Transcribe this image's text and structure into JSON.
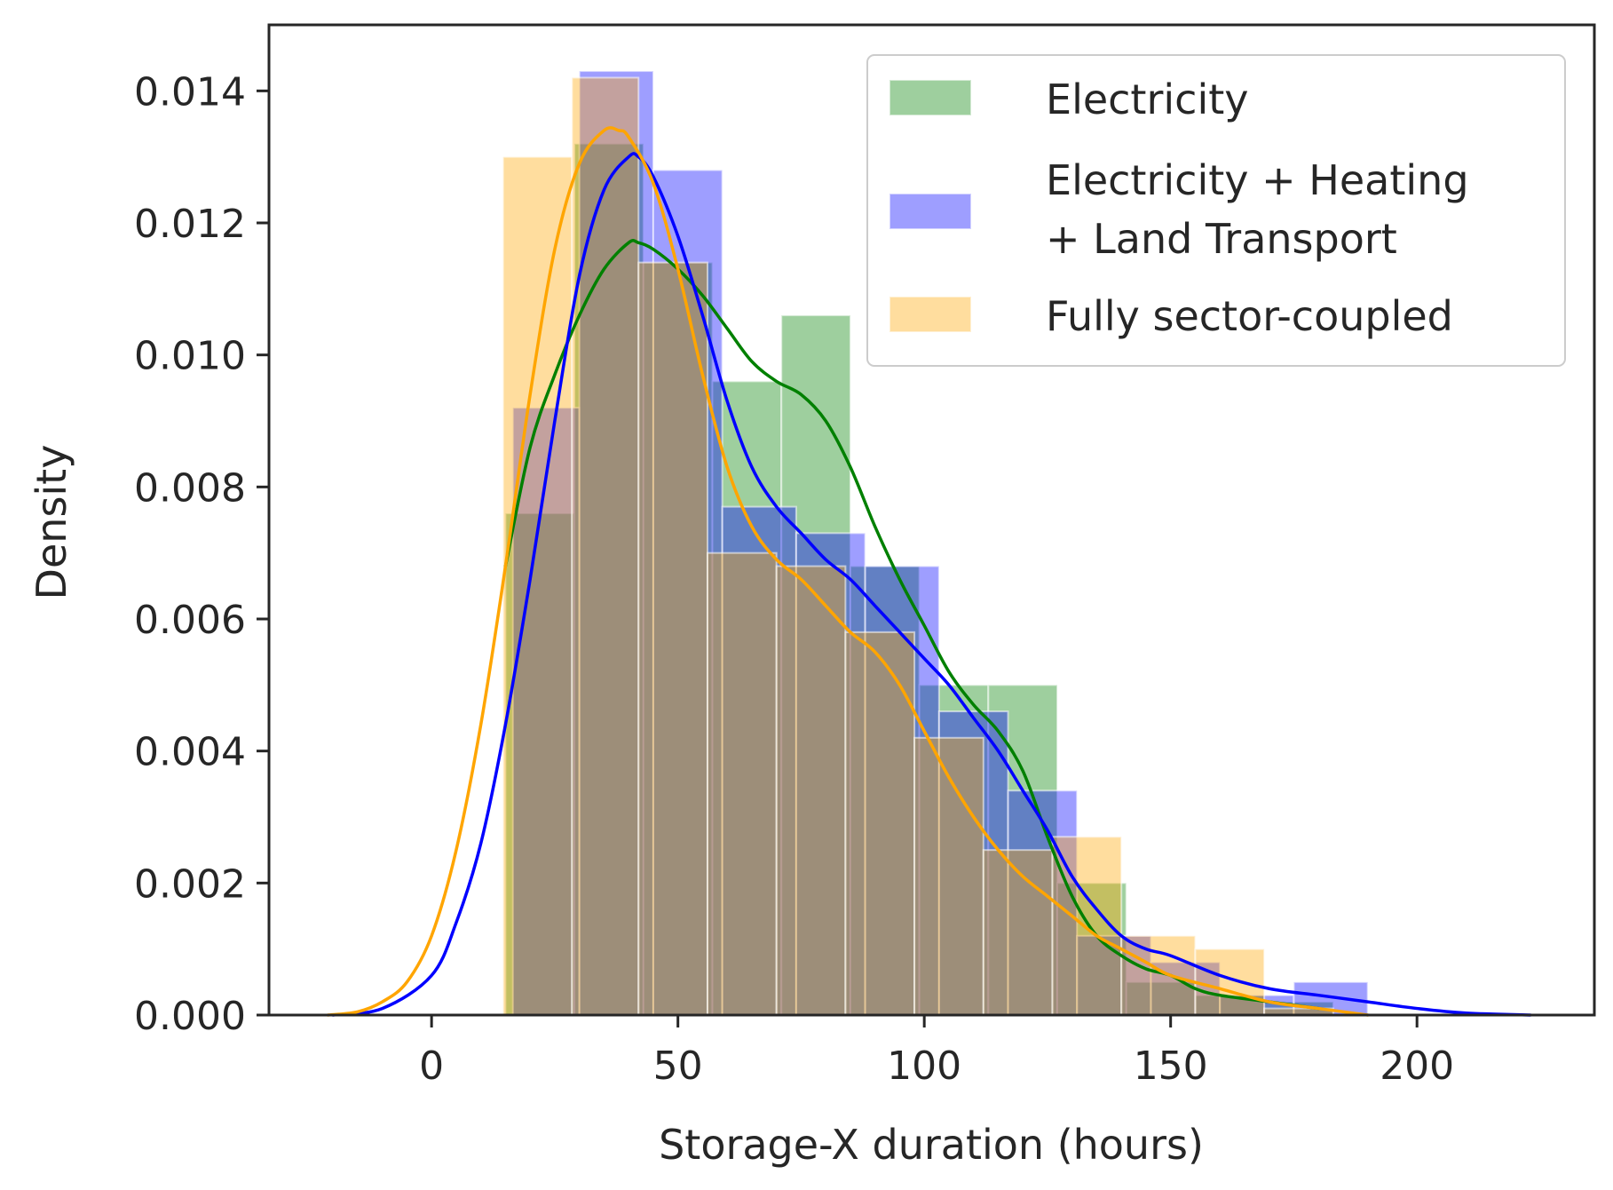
{
  "chart_data": {
    "type": "histogram+kde",
    "xlabel": "Storage-X duration (hours)",
    "ylabel": "Density",
    "xlim": [
      -33,
      236
    ],
    "ylim": [
      0,
      0.015
    ],
    "xticks": [
      0,
      50,
      100,
      150,
      200
    ],
    "xtick_labels": [
      "0",
      "50",
      "100",
      "150",
      "200"
    ],
    "yticks": [
      0,
      0.002,
      0.004,
      0.006,
      0.008,
      0.01,
      0.012,
      0.014
    ],
    "ytick_labels": [
      "0.000",
      "0.002",
      "0.004",
      "0.006",
      "0.008",
      "0.010",
      "0.012",
      "0.014"
    ],
    "legend_position": "top-right",
    "series": [
      {
        "name": "Electricity",
        "color": "#008000",
        "bins": [
          {
            "x0": 15,
            "x1": 29,
            "density": 0.0076
          },
          {
            "x0": 29,
            "x1": 43,
            "density": 0.0132
          },
          {
            "x0": 43,
            "x1": 57,
            "density": 0.0114
          },
          {
            "x0": 57,
            "x1": 71,
            "density": 0.0096
          },
          {
            "x0": 71,
            "x1": 85,
            "density": 0.0106
          },
          {
            "x0": 85,
            "x1": 99,
            "density": 0.0068
          },
          {
            "x0": 99,
            "x1": 113,
            "density": 0.005
          },
          {
            "x0": 113,
            "x1": 127,
            "density": 0.005
          },
          {
            "x0": 127,
            "x1": 141,
            "density": 0.002
          },
          {
            "x0": 141,
            "x1": 155,
            "density": 0.0005
          },
          {
            "x0": 155,
            "x1": 169,
            "density": 0.0003
          },
          {
            "x0": 169,
            "x1": 183,
            "density": 0.0002
          }
        ],
        "kde": {
          "x": [
            15,
            20,
            25,
            30,
            35,
            40,
            42,
            45,
            50,
            55,
            60,
            65,
            70,
            75,
            80,
            85,
            90,
            95,
            100,
            105,
            110,
            115,
            120,
            125,
            130,
            135,
            140,
            145,
            150,
            155,
            160,
            170,
            180
          ],
          "y": [
            0.0068,
            0.0086,
            0.0097,
            0.0106,
            0.0113,
            0.0117,
            0.0117,
            0.0116,
            0.0113,
            0.0109,
            0.0104,
            0.0099,
            0.0096,
            0.0094,
            0.009,
            0.0083,
            0.0074,
            0.0066,
            0.0059,
            0.0052,
            0.0047,
            0.0043,
            0.0037,
            0.0027,
            0.0018,
            0.0012,
            0.0009,
            0.0007,
            0.0006,
            0.0004,
            0.0003,
            0.0002,
            0.0001
          ]
        }
      },
      {
        "name": "Electricity + Heating + Land Transport",
        "color": "#0000ff",
        "bins": [
          {
            "x0": 16.5,
            "x1": 30,
            "density": 0.0092
          },
          {
            "x0": 30,
            "x1": 45,
            "density": 0.0143
          },
          {
            "x0": 45,
            "x1": 59,
            "density": 0.0128
          },
          {
            "x0": 59,
            "x1": 74,
            "density": 0.0077
          },
          {
            "x0": 74,
            "x1": 88,
            "density": 0.0073
          },
          {
            "x0": 88,
            "x1": 103,
            "density": 0.0068
          },
          {
            "x0": 103,
            "x1": 117,
            "density": 0.0046
          },
          {
            "x0": 117,
            "x1": 131,
            "density": 0.0034
          },
          {
            "x0": 131,
            "x1": 146,
            "density": 0.0012
          },
          {
            "x0": 146,
            "x1": 160,
            "density": 0.0008
          },
          {
            "x0": 160,
            "x1": 175,
            "density": 0.0003
          },
          {
            "x0": 175,
            "x1": 190,
            "density": 0.0005
          }
        ],
        "kde": {
          "x": [
            -20,
            -10,
            0,
            5,
            10,
            15,
            20,
            25,
            30,
            35,
            40,
            42,
            45,
            50,
            55,
            60,
            65,
            70,
            75,
            80,
            85,
            90,
            95,
            100,
            105,
            110,
            115,
            120,
            125,
            130,
            135,
            140,
            145,
            150,
            160,
            170,
            180,
            190,
            200,
            210,
            223
          ],
          "y": [
            0.0,
            0.0001,
            0.0006,
            0.0014,
            0.0026,
            0.0044,
            0.0066,
            0.009,
            0.0112,
            0.0125,
            0.013,
            0.013,
            0.0127,
            0.0118,
            0.0106,
            0.0093,
            0.0083,
            0.0077,
            0.0073,
            0.0069,
            0.0066,
            0.0062,
            0.0058,
            0.0054,
            0.005,
            0.0045,
            0.004,
            0.0034,
            0.0028,
            0.0021,
            0.0016,
            0.0012,
            0.001,
            0.0009,
            0.0006,
            0.0004,
            0.0003,
            0.0002,
            0.0001,
            3e-05,
            0.0
          ]
        }
      },
      {
        "name": "Fully sector-coupled",
        "color": "#ffa500",
        "bins": [
          {
            "x0": 14.5,
            "x1": 28.5,
            "density": 0.013
          },
          {
            "x0": 28.5,
            "x1": 42,
            "density": 0.0142
          },
          {
            "x0": 42,
            "x1": 56,
            "density": 0.0114
          },
          {
            "x0": 56,
            "x1": 70,
            "density": 0.007
          },
          {
            "x0": 70,
            "x1": 84,
            "density": 0.0068
          },
          {
            "x0": 84,
            "x1": 98,
            "density": 0.0058
          },
          {
            "x0": 98,
            "x1": 112,
            "density": 0.0042
          },
          {
            "x0": 112,
            "x1": 126,
            "density": 0.0025
          },
          {
            "x0": 126,
            "x1": 140,
            "density": 0.0027
          },
          {
            "x0": 140,
            "x1": 155,
            "density": 0.0012
          },
          {
            "x0": 155,
            "x1": 169,
            "density": 0.001
          },
          {
            "x0": 169,
            "x1": 183,
            "density": 0.0001
          }
        ],
        "kde": {
          "x": [
            -21,
            -15,
            -10,
            -5,
            0,
            5,
            10,
            15,
            20,
            25,
            30,
            35,
            38,
            40,
            45,
            50,
            55,
            60,
            65,
            70,
            75,
            80,
            85,
            90,
            95,
            100,
            105,
            110,
            115,
            120,
            125,
            130,
            135,
            140,
            145,
            150,
            160,
            170,
            180,
            190
          ],
          "y": [
            0.0,
            5e-05,
            0.0002,
            0.0005,
            0.0012,
            0.0025,
            0.0044,
            0.0068,
            0.0094,
            0.0116,
            0.0129,
            0.0134,
            0.0134,
            0.0133,
            0.0126,
            0.0113,
            0.0097,
            0.0083,
            0.0074,
            0.0069,
            0.0066,
            0.0062,
            0.0058,
            0.0055,
            0.005,
            0.0043,
            0.0036,
            0.003,
            0.0025,
            0.0021,
            0.0018,
            0.0015,
            0.0012,
            0.001,
            0.0008,
            0.0006,
            0.0004,
            0.0002,
            0.0001,
            0.0
          ]
        }
      }
    ],
    "legend": [
      {
        "lines": [
          "Electricity"
        ]
      },
      {
        "lines": [
          "Electricity + Heating",
          "+ Land Transport"
        ]
      },
      {
        "lines": [
          "Fully sector-coupled"
        ]
      }
    ]
  }
}
